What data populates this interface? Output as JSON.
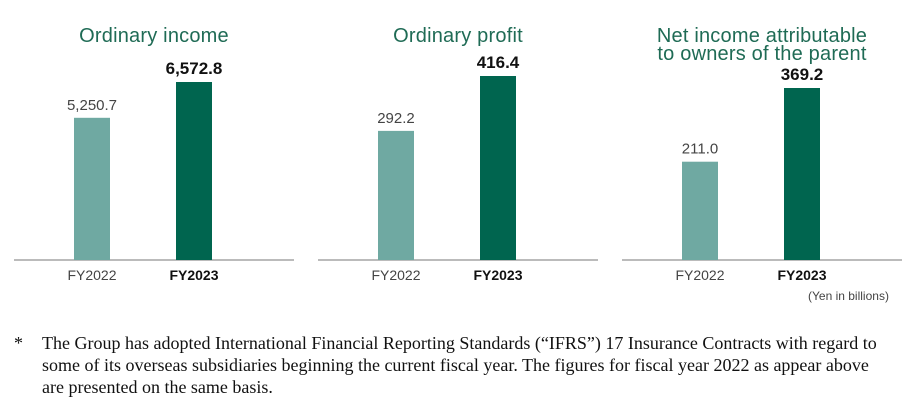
{
  "colors": {
    "fy2022_bar": "#6fa9a2",
    "fy2023_bar": "#00654f",
    "title": "#1f6b55"
  },
  "chart_data": [
    {
      "type": "bar",
      "title": "Ordinary income",
      "categories": [
        "FY2022",
        "FY2023"
      ],
      "values": [
        5250.7,
        6572.8
      ],
      "value_labels": [
        "5,250.7",
        "6,572.8"
      ]
    },
    {
      "type": "bar",
      "title": "Ordinary profit",
      "categories": [
        "FY2022",
        "FY2023"
      ],
      "values": [
        292.2,
        416.4
      ],
      "value_labels": [
        "292.2",
        "416.4"
      ]
    },
    {
      "type": "bar",
      "title": "Net income attributable to owners of the parent",
      "title_lines": [
        "Net income attributable",
        "to owners of the parent"
      ],
      "categories": [
        "FY2022",
        "FY2023"
      ],
      "values": [
        211.0,
        369.2
      ],
      "value_labels": [
        "211.0",
        "369.2"
      ]
    }
  ],
  "unit_note": "(Yen in billions)",
  "footnote": {
    "marker": "*",
    "text": "The Group has adopted International Financial Reporting Standards (“IFRS”) 17 Insurance Contracts with regard to some of its overseas subsidiaries beginning the current fiscal year. The figures for fiscal year 2022 as appear above are presented on the same basis."
  }
}
